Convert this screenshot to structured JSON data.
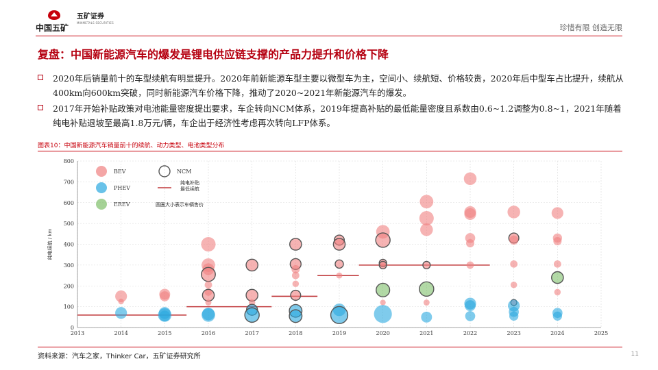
{
  "header": {
    "company_cn": "中国五矿",
    "brand_cn": "五矿证券",
    "brand_en": "MINMETALS SECURITIES",
    "slogan": "珍惜有限 创造无限"
  },
  "title": "复盘：中国新能源汽车的爆发是锂电供应链支撑的产品力提升和价格下降",
  "bullets": [
    "2020年后销量前十的车型续航有明显提升。2020年前新能源车型主要以微型车为主，空间小、续航短、价格较贵，2020年后中型车占比提升，续航从400km向600km突破，同时新能源汽车价格下降，推动了2020~2021年新能源汽车的爆发。",
    "2017年开始补贴政策对电池能量密度提出要求，车企转向NCM体系，2019年提高补贴的最低能量密度且系数由0.6~1.2调整为0.8~1，2021年随着纯电补贴退坡至最高1.8万元/辆，车企出于经济性考虑再次转向LFP体系。"
  ],
  "figure_title": "图表10：中国新能源汽车销量前十的续航、动力类型、电池类型分布",
  "source": "资料来源：汽车之家，Thinker Car，五矿证券研究所",
  "page_number": "11",
  "colors": {
    "brand_red": "#b50010",
    "BEV": "#f08080",
    "PHEV": "#29a8e0",
    "EREV": "#7fbf6a",
    "NCM_ring": "#555555",
    "subsidy_line": "#c0393b"
  },
  "chart_data": {
    "type": "scatter",
    "ylabel": "纯电续航 / km",
    "xlim": [
      2013,
      2025
    ],
    "ylim": [
      0,
      800
    ],
    "xticks": [
      2013,
      2014,
      2015,
      2016,
      2017,
      2018,
      2019,
      2020,
      2021,
      2022,
      2023,
      2024,
      2025
    ],
    "yticks": [
      0,
      100,
      200,
      300,
      400,
      500,
      600,
      700,
      800
    ],
    "grid": true,
    "legend": {
      "position": "top-left",
      "entries": [
        {
          "label": "BEV",
          "kind": "BEV"
        },
        {
          "label": "PHEV",
          "kind": "PHEV"
        },
        {
          "label": "EREV",
          "kind": "EREV"
        },
        {
          "label": "NCM",
          "kind": "NCM"
        },
        {
          "label": "纯电补贴\n最低续航",
          "kind": "subsidy"
        },
        {
          "label": "圆圈大小表示车辆售价",
          "kind": "note"
        }
      ]
    },
    "points": [
      {
        "x": 2014,
        "y": 150,
        "type": "BEV",
        "size": 2,
        "ncm": false
      },
      {
        "x": 2014,
        "y": 125,
        "type": "BEV",
        "size": 0.6,
        "ncm": false
      },
      {
        "x": 2014,
        "y": 70,
        "type": "PHEV",
        "size": 2,
        "ncm": false
      },
      {
        "x": 2015,
        "y": 160,
        "type": "BEV",
        "size": 1.8,
        "ncm": false
      },
      {
        "x": 2015,
        "y": 150,
        "type": "BEV",
        "size": 1.6,
        "ncm": false
      },
      {
        "x": 2015,
        "y": 70,
        "type": "PHEV",
        "size": 2,
        "ncm": false
      },
      {
        "x": 2015,
        "y": 60,
        "type": "PHEV",
        "size": 2.4,
        "ncm": false
      },
      {
        "x": 2015,
        "y": 55,
        "type": "PHEV",
        "size": 1.8,
        "ncm": false
      },
      {
        "x": 2016,
        "y": 400,
        "type": "BEV",
        "size": 2.6,
        "ncm": false
      },
      {
        "x": 2016,
        "y": 300,
        "type": "BEV",
        "size": 2.4,
        "ncm": false
      },
      {
        "x": 2016,
        "y": 280,
        "type": "BEV",
        "size": 2.0,
        "ncm": false
      },
      {
        "x": 2016,
        "y": 255,
        "type": "BEV",
        "size": 2.5,
        "ncm": true
      },
      {
        "x": 2016,
        "y": 205,
        "type": "BEV",
        "size": 1.0,
        "ncm": false
      },
      {
        "x": 2016,
        "y": 170,
        "type": "BEV",
        "size": 1.0,
        "ncm": false
      },
      {
        "x": 2016,
        "y": 155,
        "type": "BEV",
        "size": 2.0,
        "ncm": true
      },
      {
        "x": 2016,
        "y": 120,
        "type": "BEV",
        "size": 0.7,
        "ncm": false
      },
      {
        "x": 2016,
        "y": 65,
        "type": "PHEV",
        "size": 2.2,
        "ncm": false
      },
      {
        "x": 2016,
        "y": 60,
        "type": "PHEV",
        "size": 2.4,
        "ncm": false
      },
      {
        "x": 2017,
        "y": 300,
        "type": "BEV",
        "size": 2.0,
        "ncm": true
      },
      {
        "x": 2017,
        "y": 155,
        "type": "BEV",
        "size": 2.0,
        "ncm": true
      },
      {
        "x": 2017,
        "y": 120,
        "type": "BEV",
        "size": 0.8,
        "ncm": false
      },
      {
        "x": 2017,
        "y": 85,
        "type": "PHEV",
        "size": 1.8,
        "ncm": true
      },
      {
        "x": 2017,
        "y": 60,
        "type": "PHEV",
        "size": 2.6,
        "ncm": true
      },
      {
        "x": 2018,
        "y": 400,
        "type": "BEV",
        "size": 2.0,
        "ncm": true
      },
      {
        "x": 2018,
        "y": 305,
        "type": "BEV",
        "size": 1.8,
        "ncm": true
      },
      {
        "x": 2018,
        "y": 280,
        "type": "BEV",
        "size": 1.2,
        "ncm": false
      },
      {
        "x": 2018,
        "y": 250,
        "type": "BEV",
        "size": 1.0,
        "ncm": false
      },
      {
        "x": 2018,
        "y": 210,
        "type": "BEV",
        "size": 0.8,
        "ncm": false
      },
      {
        "x": 2018,
        "y": 155,
        "type": "BEV",
        "size": 1.6,
        "ncm": true
      },
      {
        "x": 2018,
        "y": 80,
        "type": "PHEV",
        "size": 2.2,
        "ncm": true
      },
      {
        "x": 2018,
        "y": 55,
        "type": "PHEV",
        "size": 2.2,
        "ncm": true
      },
      {
        "x": 2019,
        "y": 420,
        "type": "BEV",
        "size": 1.6,
        "ncm": true
      },
      {
        "x": 2019,
        "y": 400,
        "type": "BEV",
        "size": 2.0,
        "ncm": true
      },
      {
        "x": 2019,
        "y": 305,
        "type": "BEV",
        "size": 1.2,
        "ncm": true
      },
      {
        "x": 2019,
        "y": 250,
        "type": "BEV",
        "size": 0.7,
        "ncm": false
      },
      {
        "x": 2019,
        "y": 85,
        "type": "PHEV",
        "size": 2.2,
        "ncm": false
      },
      {
        "x": 2019,
        "y": 60,
        "type": "PHEV",
        "size": 3.2,
        "ncm": true
      },
      {
        "x": 2020,
        "y": 460,
        "type": "BEV",
        "size": 2.4,
        "ncm": false
      },
      {
        "x": 2020,
        "y": 420,
        "type": "BEV",
        "size": 2.6,
        "ncm": true
      },
      {
        "x": 2020,
        "y": 310,
        "type": "BEV",
        "size": 1.0,
        "ncm": true
      },
      {
        "x": 2020,
        "y": 300,
        "type": "BEV",
        "size": 1.0,
        "ncm": true
      },
      {
        "x": 2020,
        "y": 180,
        "type": "EREV",
        "size": 2.4,
        "ncm": true
      },
      {
        "x": 2020,
        "y": 120,
        "type": "BEV",
        "size": 0.6,
        "ncm": false
      },
      {
        "x": 2020,
        "y": 65,
        "type": "PHEV",
        "size": 3.4,
        "ncm": false
      },
      {
        "x": 2021,
        "y": 605,
        "type": "BEV",
        "size": 2.4,
        "ncm": false
      },
      {
        "x": 2021,
        "y": 525,
        "type": "BEV",
        "size": 2.6,
        "ncm": false
      },
      {
        "x": 2021,
        "y": 470,
        "type": "BEV",
        "size": 2.2,
        "ncm": false
      },
      {
        "x": 2021,
        "y": 300,
        "type": "BEV",
        "size": 1.0,
        "ncm": true
      },
      {
        "x": 2021,
        "y": 185,
        "type": "EREV",
        "size": 2.6,
        "ncm": true
      },
      {
        "x": 2021,
        "y": 120,
        "type": "BEV",
        "size": 0.7,
        "ncm": false
      },
      {
        "x": 2021,
        "y": 50,
        "type": "PHEV",
        "size": 1.8,
        "ncm": false
      },
      {
        "x": 2022,
        "y": 715,
        "type": "BEV",
        "size": 2.2,
        "ncm": false
      },
      {
        "x": 2022,
        "y": 555,
        "type": "BEV",
        "size": 2.0,
        "ncm": false
      },
      {
        "x": 2022,
        "y": 545,
        "type": "BEV",
        "size": 2.0,
        "ncm": false
      },
      {
        "x": 2022,
        "y": 430,
        "type": "BEV",
        "size": 1.6,
        "ncm": false
      },
      {
        "x": 2022,
        "y": 405,
        "type": "BEV",
        "size": 1.2,
        "ncm": false
      },
      {
        "x": 2022,
        "y": 300,
        "type": "BEV",
        "size": 1.0,
        "ncm": false
      },
      {
        "x": 2022,
        "y": 115,
        "type": "PHEV",
        "size": 2.0,
        "ncm": false
      },
      {
        "x": 2022,
        "y": 105,
        "type": "PHEV",
        "size": 1.8,
        "ncm": false
      },
      {
        "x": 2022,
        "y": 55,
        "type": "PHEV",
        "size": 1.6,
        "ncm": false
      },
      {
        "x": 2023,
        "y": 555,
        "type": "BEV",
        "size": 2.2,
        "ncm": false
      },
      {
        "x": 2023,
        "y": 430,
        "type": "BEV",
        "size": 1.6,
        "ncm": true
      },
      {
        "x": 2023,
        "y": 420,
        "type": "BEV",
        "size": 1.4,
        "ncm": false
      },
      {
        "x": 2023,
        "y": 305,
        "type": "BEV",
        "size": 1.0,
        "ncm": false
      },
      {
        "x": 2023,
        "y": 205,
        "type": "BEV",
        "size": 0.8,
        "ncm": false
      },
      {
        "x": 2023,
        "y": 120,
        "type": "BEV",
        "size": 0.7,
        "ncm": true
      },
      {
        "x": 2023,
        "y": 105,
        "type": "PHEV",
        "size": 2.0,
        "ncm": false
      },
      {
        "x": 2023,
        "y": 75,
        "type": "PHEV",
        "size": 1.6,
        "ncm": false
      },
      {
        "x": 2023,
        "y": 55,
        "type": "PHEV",
        "size": 1.4,
        "ncm": false
      },
      {
        "x": 2024,
        "y": 550,
        "type": "BEV",
        "size": 2.0,
        "ncm": false
      },
      {
        "x": 2024,
        "y": 430,
        "type": "BEV",
        "size": 1.4,
        "ncm": false
      },
      {
        "x": 2024,
        "y": 415,
        "type": "BEV",
        "size": 1.2,
        "ncm": false
      },
      {
        "x": 2024,
        "y": 305,
        "type": "BEV",
        "size": 1.0,
        "ncm": false
      },
      {
        "x": 2024,
        "y": 240,
        "type": "EREV",
        "size": 2.0,
        "ncm": true
      },
      {
        "x": 2024,
        "y": 170,
        "type": "BEV",
        "size": 0.8,
        "ncm": false
      },
      {
        "x": 2024,
        "y": 70,
        "type": "PHEV",
        "size": 1.6,
        "ncm": false
      },
      {
        "x": 2024,
        "y": 55,
        "type": "PHEV",
        "size": 1.4,
        "ncm": false
      }
    ],
    "subsidy_line": [
      {
        "x0": 2013,
        "x1": 2014.5,
        "y": 60
      },
      {
        "x0": 2014.5,
        "x1": 2015.5,
        "y": 60
      },
      {
        "x0": 2015.5,
        "x1": 2017.45,
        "y": 100
      },
      {
        "x0": 2017.45,
        "x1": 2018.5,
        "y": 150
      },
      {
        "x0": 2018.5,
        "x1": 2019.45,
        "y": 250
      },
      {
        "x0": 2019.45,
        "x1": 2022.45,
        "y": 300
      }
    ]
  }
}
